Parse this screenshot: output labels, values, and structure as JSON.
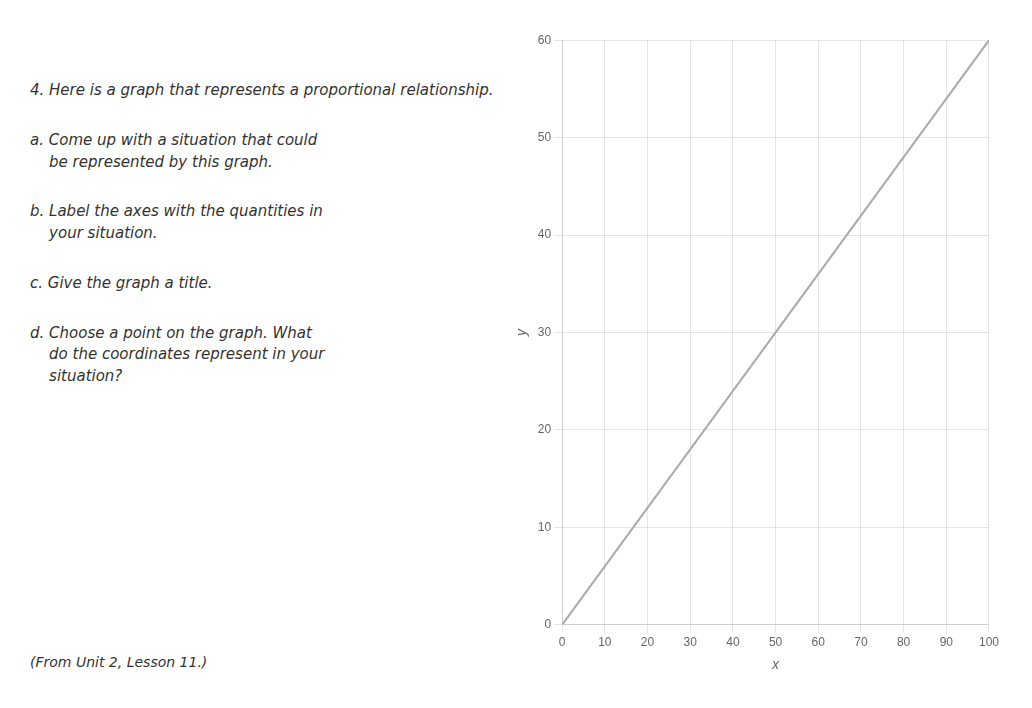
{
  "chart_data": {
    "type": "line",
    "x_label": "x",
    "y_label": "y",
    "x": [
      0,
      100
    ],
    "values": [
      0,
      60
    ],
    "color": "#aaaaaa",
    "xlim": [
      0,
      100
    ],
    "ylim": [
      0,
      60
    ],
    "xticks": [
      0,
      10,
      20,
      30,
      40,
      50,
      60,
      70,
      80,
      90,
      100
    ],
    "yticks": [
      0,
      10,
      20,
      30,
      40,
      50,
      60
    ],
    "grid": true,
    "annotations": [
      "4. Here is a graph that represents a proportional relationship.",
      "a. Come up with a situation that could\n    be represented by this graph.",
      "b. Label the axes with the quantities in\n    your situation.",
      "c. Give the graph a title.",
      "d. Choose a point on the graph. What\n    do the coordinates represent in your\n    situation?",
      "(From Unit 2, Lesson 11.)"
    ]
  }
}
